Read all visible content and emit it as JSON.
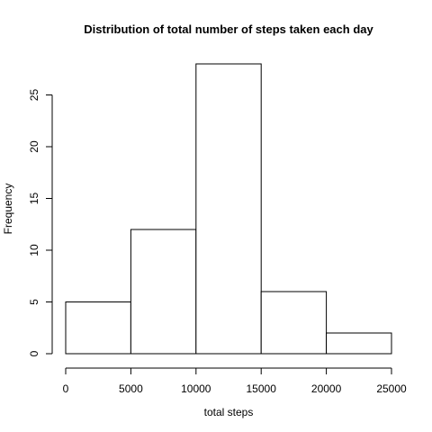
{
  "chart_data": {
    "type": "bar",
    "title": "Distribution of total number of steps taken each day",
    "xlabel": "total steps",
    "ylabel": "Frequency",
    "bins": [
      {
        "from": 0,
        "to": 5000,
        "count": 5
      },
      {
        "from": 5000,
        "to": 10000,
        "count": 12
      },
      {
        "from": 10000,
        "to": 15000,
        "count": 28
      },
      {
        "from": 15000,
        "to": 20000,
        "count": 6
      },
      {
        "from": 20000,
        "to": 25000,
        "count": 2
      }
    ],
    "xlim": [
      0,
      25000
    ],
    "ylim": [
      0,
      28
    ],
    "xticks": [
      0,
      5000,
      10000,
      15000,
      20000,
      25000
    ],
    "yticks": [
      0,
      5,
      10,
      15,
      20,
      25
    ],
    "grid": false,
    "legend": "none"
  }
}
